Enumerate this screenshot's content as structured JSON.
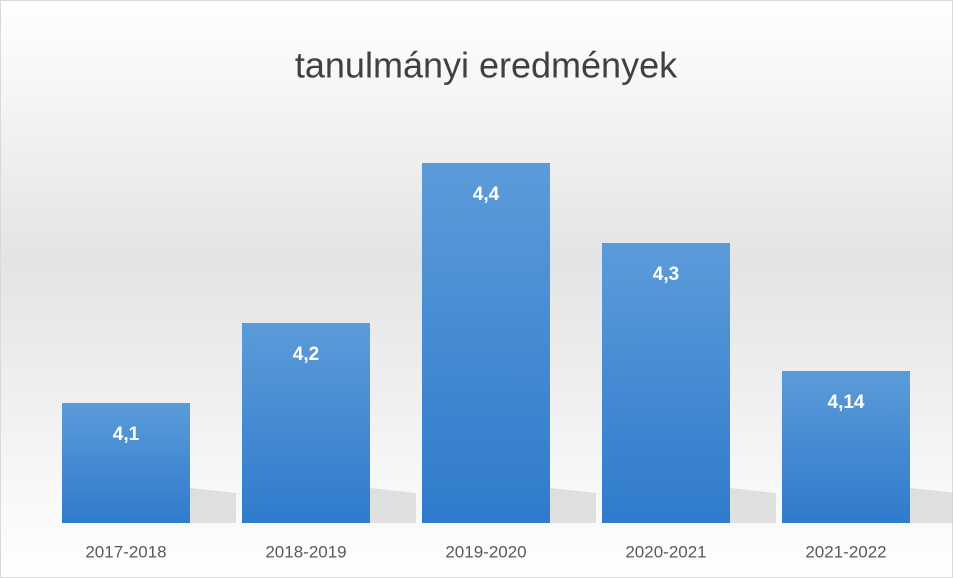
{
  "chart_data": {
    "type": "bar",
    "title": "tanulmányi eredmények",
    "categories": [
      "2017-2018",
      "2018-2019",
      "2019-2020",
      "2020-2021",
      "2021-2022"
    ],
    "values": [
      4.1,
      4.2,
      4.4,
      4.3,
      4.14
    ],
    "value_labels": [
      "4,1",
      "4,2",
      "4,4",
      "4,3",
      "4,14"
    ],
    "color": "#3d85d0",
    "ylim": [
      3.95,
      4.5
    ]
  }
}
